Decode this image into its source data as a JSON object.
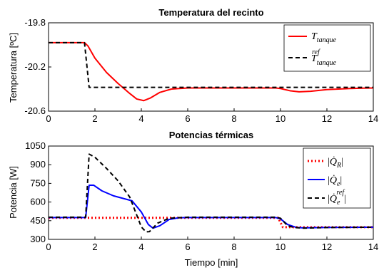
{
  "chart_data": [
    {
      "type": "line",
      "title": "Temperatura del recinto",
      "ylabel": "Temperatura [ºC]",
      "xlabel": "",
      "xlim": [
        0,
        14
      ],
      "ylim": [
        -20.6,
        -19.8
      ],
      "xticks": [
        "0",
        "2",
        "4",
        "6",
        "8",
        "10",
        "12",
        "14"
      ],
      "yticks": [
        "-19.8",
        "-20.2",
        "-20.6"
      ],
      "ytick_values": [
        -19.8,
        -20.2,
        -20.6
      ],
      "grid": false,
      "legend_position": "top-right",
      "series": [
        {
          "name": "T_tanque",
          "legend_main": "T",
          "legend_sub": "tanque",
          "color": "#ff0000",
          "style": "solid",
          "points": [
            [
              0,
              -19.98
            ],
            [
              1.2,
              -19.98
            ],
            [
              1.55,
              -19.98
            ],
            [
              1.7,
              -20.01
            ],
            [
              2.0,
              -20.12
            ],
            [
              2.5,
              -20.25
            ],
            [
              3.0,
              -20.35
            ],
            [
              3.5,
              -20.44
            ],
            [
              3.8,
              -20.49
            ],
            [
              4.1,
              -20.505
            ],
            [
              4.4,
              -20.48
            ],
            [
              4.8,
              -20.43
            ],
            [
              5.3,
              -20.4
            ],
            [
              6.0,
              -20.39
            ],
            [
              7.0,
              -20.39
            ],
            [
              8.0,
              -20.39
            ],
            [
              9.0,
              -20.39
            ],
            [
              9.8,
              -20.39
            ],
            [
              10.0,
              -20.395
            ],
            [
              10.4,
              -20.415
            ],
            [
              10.8,
              -20.425
            ],
            [
              11.3,
              -20.42
            ],
            [
              12.0,
              -20.405
            ],
            [
              13.0,
              -20.395
            ],
            [
              14.0,
              -20.39
            ]
          ]
        },
        {
          "name": "T_tanque^ref",
          "legend_main": "T",
          "legend_sub": "tanque",
          "legend_sup": "ref",
          "color": "#000000",
          "style": "dashed",
          "points": [
            [
              0,
              -19.98
            ],
            [
              1.55,
              -19.98
            ],
            [
              1.75,
              -20.385
            ],
            [
              14,
              -20.385
            ]
          ]
        }
      ]
    },
    {
      "type": "line",
      "title": "Potencias térmicas",
      "ylabel": "Potencia [W]",
      "xlabel": "Tiempo [min]",
      "xlim": [
        0,
        14
      ],
      "ylim": [
        300,
        1050
      ],
      "xticks": [
        "0",
        "2",
        "4",
        "6",
        "8",
        "10",
        "12",
        "14"
      ],
      "yticks": [
        "1050",
        "900",
        "750",
        "600",
        "450",
        "300"
      ],
      "ytick_values": [
        1050,
        900,
        750,
        600,
        450,
        300
      ],
      "grid": false,
      "legend_position": "top-right",
      "series": [
        {
          "name": "|Q̇_R|",
          "legend_main": "Q̇",
          "legend_sub": "R",
          "color": "#ff0000",
          "style": "dotted",
          "points": [
            [
              0,
              473
            ],
            [
              9.9,
              473
            ],
            [
              10.1,
              398
            ],
            [
              14,
              398
            ]
          ]
        },
        {
          "name": "|Q̇_e|",
          "legend_main": "Q̇",
          "legend_sub": "e",
          "color": "#0000ff",
          "style": "solid",
          "points": [
            [
              0,
              475
            ],
            [
              1.6,
              475
            ],
            [
              1.75,
              735
            ],
            [
              1.95,
              735
            ],
            [
              2.3,
              690
            ],
            [
              2.8,
              650
            ],
            [
              3.2,
              630
            ],
            [
              3.6,
              610
            ],
            [
              4.0,
              520
            ],
            [
              4.3,
              420
            ],
            [
              4.5,
              390
            ],
            [
              4.8,
              410
            ],
            [
              5.2,
              460
            ],
            [
              5.6,
              473
            ],
            [
              6.0,
              475
            ],
            [
              9.8,
              475
            ],
            [
              10.0,
              465
            ],
            [
              10.3,
              420
            ],
            [
              10.7,
              395
            ],
            [
              11.0,
              392
            ],
            [
              12.0,
              396
            ],
            [
              14,
              398
            ]
          ]
        },
        {
          "name": "|Q̇_e^ref|",
          "legend_main": "Q̇",
          "legend_sub": "e",
          "legend_sup": "ref",
          "color": "#000000",
          "style": "dashed",
          "points": [
            [
              0,
              478
            ],
            [
              1.6,
              478
            ],
            [
              1.75,
              985
            ],
            [
              2.0,
              960
            ],
            [
              2.5,
              870
            ],
            [
              3.0,
              770
            ],
            [
              3.5,
              640
            ],
            [
              4.0,
              400
            ],
            [
              4.2,
              360
            ],
            [
              4.35,
              362
            ],
            [
              4.7,
              430
            ],
            [
              5.2,
              470
            ],
            [
              6.0,
              478
            ],
            [
              9.8,
              478
            ],
            [
              10.0,
              470
            ],
            [
              10.3,
              410
            ],
            [
              10.6,
              395
            ],
            [
              11.0,
              390
            ],
            [
              12.0,
              395
            ],
            [
              14,
              398
            ]
          ]
        }
      ]
    }
  ]
}
